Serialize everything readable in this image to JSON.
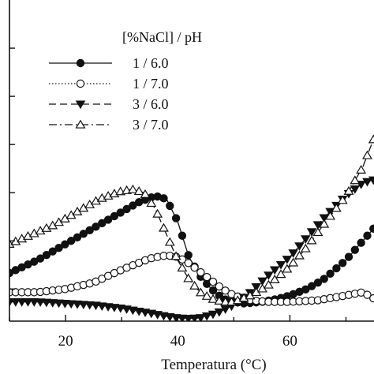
{
  "chart_data": {
    "type": "line",
    "xlabel": "Temperatura (°C)",
    "ylabel": "",
    "xlim": [
      10,
      75
    ],
    "ylim": [
      0,
      100
    ],
    "x_ticks": [
      20,
      40,
      60
    ],
    "grid": false,
    "legend": {
      "title": "[%NaCl] / pH",
      "placement": "top-center"
    },
    "series": [
      {
        "name": "1 / 6.0",
        "line_style": "solid",
        "marker": "filled-circle",
        "x": [
          10,
          15,
          20,
          25,
          30,
          33,
          36,
          38,
          40,
          42,
          44,
          46,
          48,
          50,
          52,
          55,
          58,
          60,
          63,
          66,
          70,
          73,
          75
        ],
        "y": [
          15,
          19,
          24,
          29,
          34,
          37,
          39,
          38,
          31,
          20,
          14,
          10,
          7,
          6,
          5.5,
          6,
          7,
          8,
          10,
          13,
          19,
          25,
          29
        ]
      },
      {
        "name": "1 / 7.0",
        "line_style": "dotted",
        "marker": "open-circle",
        "x": [
          10,
          15,
          20,
          25,
          30,
          35,
          38,
          40,
          42,
          45,
          48,
          50,
          53,
          56,
          60,
          65,
          70,
          73,
          75
        ],
        "y": [
          9,
          9,
          10,
          12,
          16,
          19.5,
          20.5,
          20,
          18,
          14,
          10,
          8,
          6.5,
          6,
          6,
          6.5,
          8,
          9,
          7
        ]
      },
      {
        "name": "3 / 6.0",
        "line_style": "dashed",
        "marker": "filled-triangle-down",
        "x": [
          10,
          15,
          20,
          25,
          30,
          35,
          38,
          40,
          42,
          44,
          47,
          50,
          53,
          56,
          60,
          63,
          66,
          70,
          73,
          75
        ],
        "y": [
          6,
          6,
          5.5,
          5,
          4,
          2.5,
          1.5,
          1,
          0.8,
          1,
          2.5,
          5,
          9,
          14,
          20,
          26,
          32,
          39,
          43,
          44
        ]
      },
      {
        "name": "3 / 7.0",
        "line_style": "dash-dot",
        "marker": "open-triangle-up",
        "x": [
          10,
          14,
          18,
          22,
          26,
          30,
          32,
          34,
          36,
          38,
          40,
          42,
          44,
          46,
          48,
          50,
          53,
          56,
          60,
          63,
          66,
          70,
          73,
          75
        ],
        "y": [
          24,
          27,
          30,
          34,
          38,
          40.5,
          41,
          40,
          35,
          27,
          19,
          13,
          9,
          7,
          6,
          6,
          8,
          11,
          17,
          23,
          30,
          39,
          48,
          57
        ]
      }
    ]
  },
  "colors": {
    "ink": "#111111",
    "background": "#ffffff"
  }
}
